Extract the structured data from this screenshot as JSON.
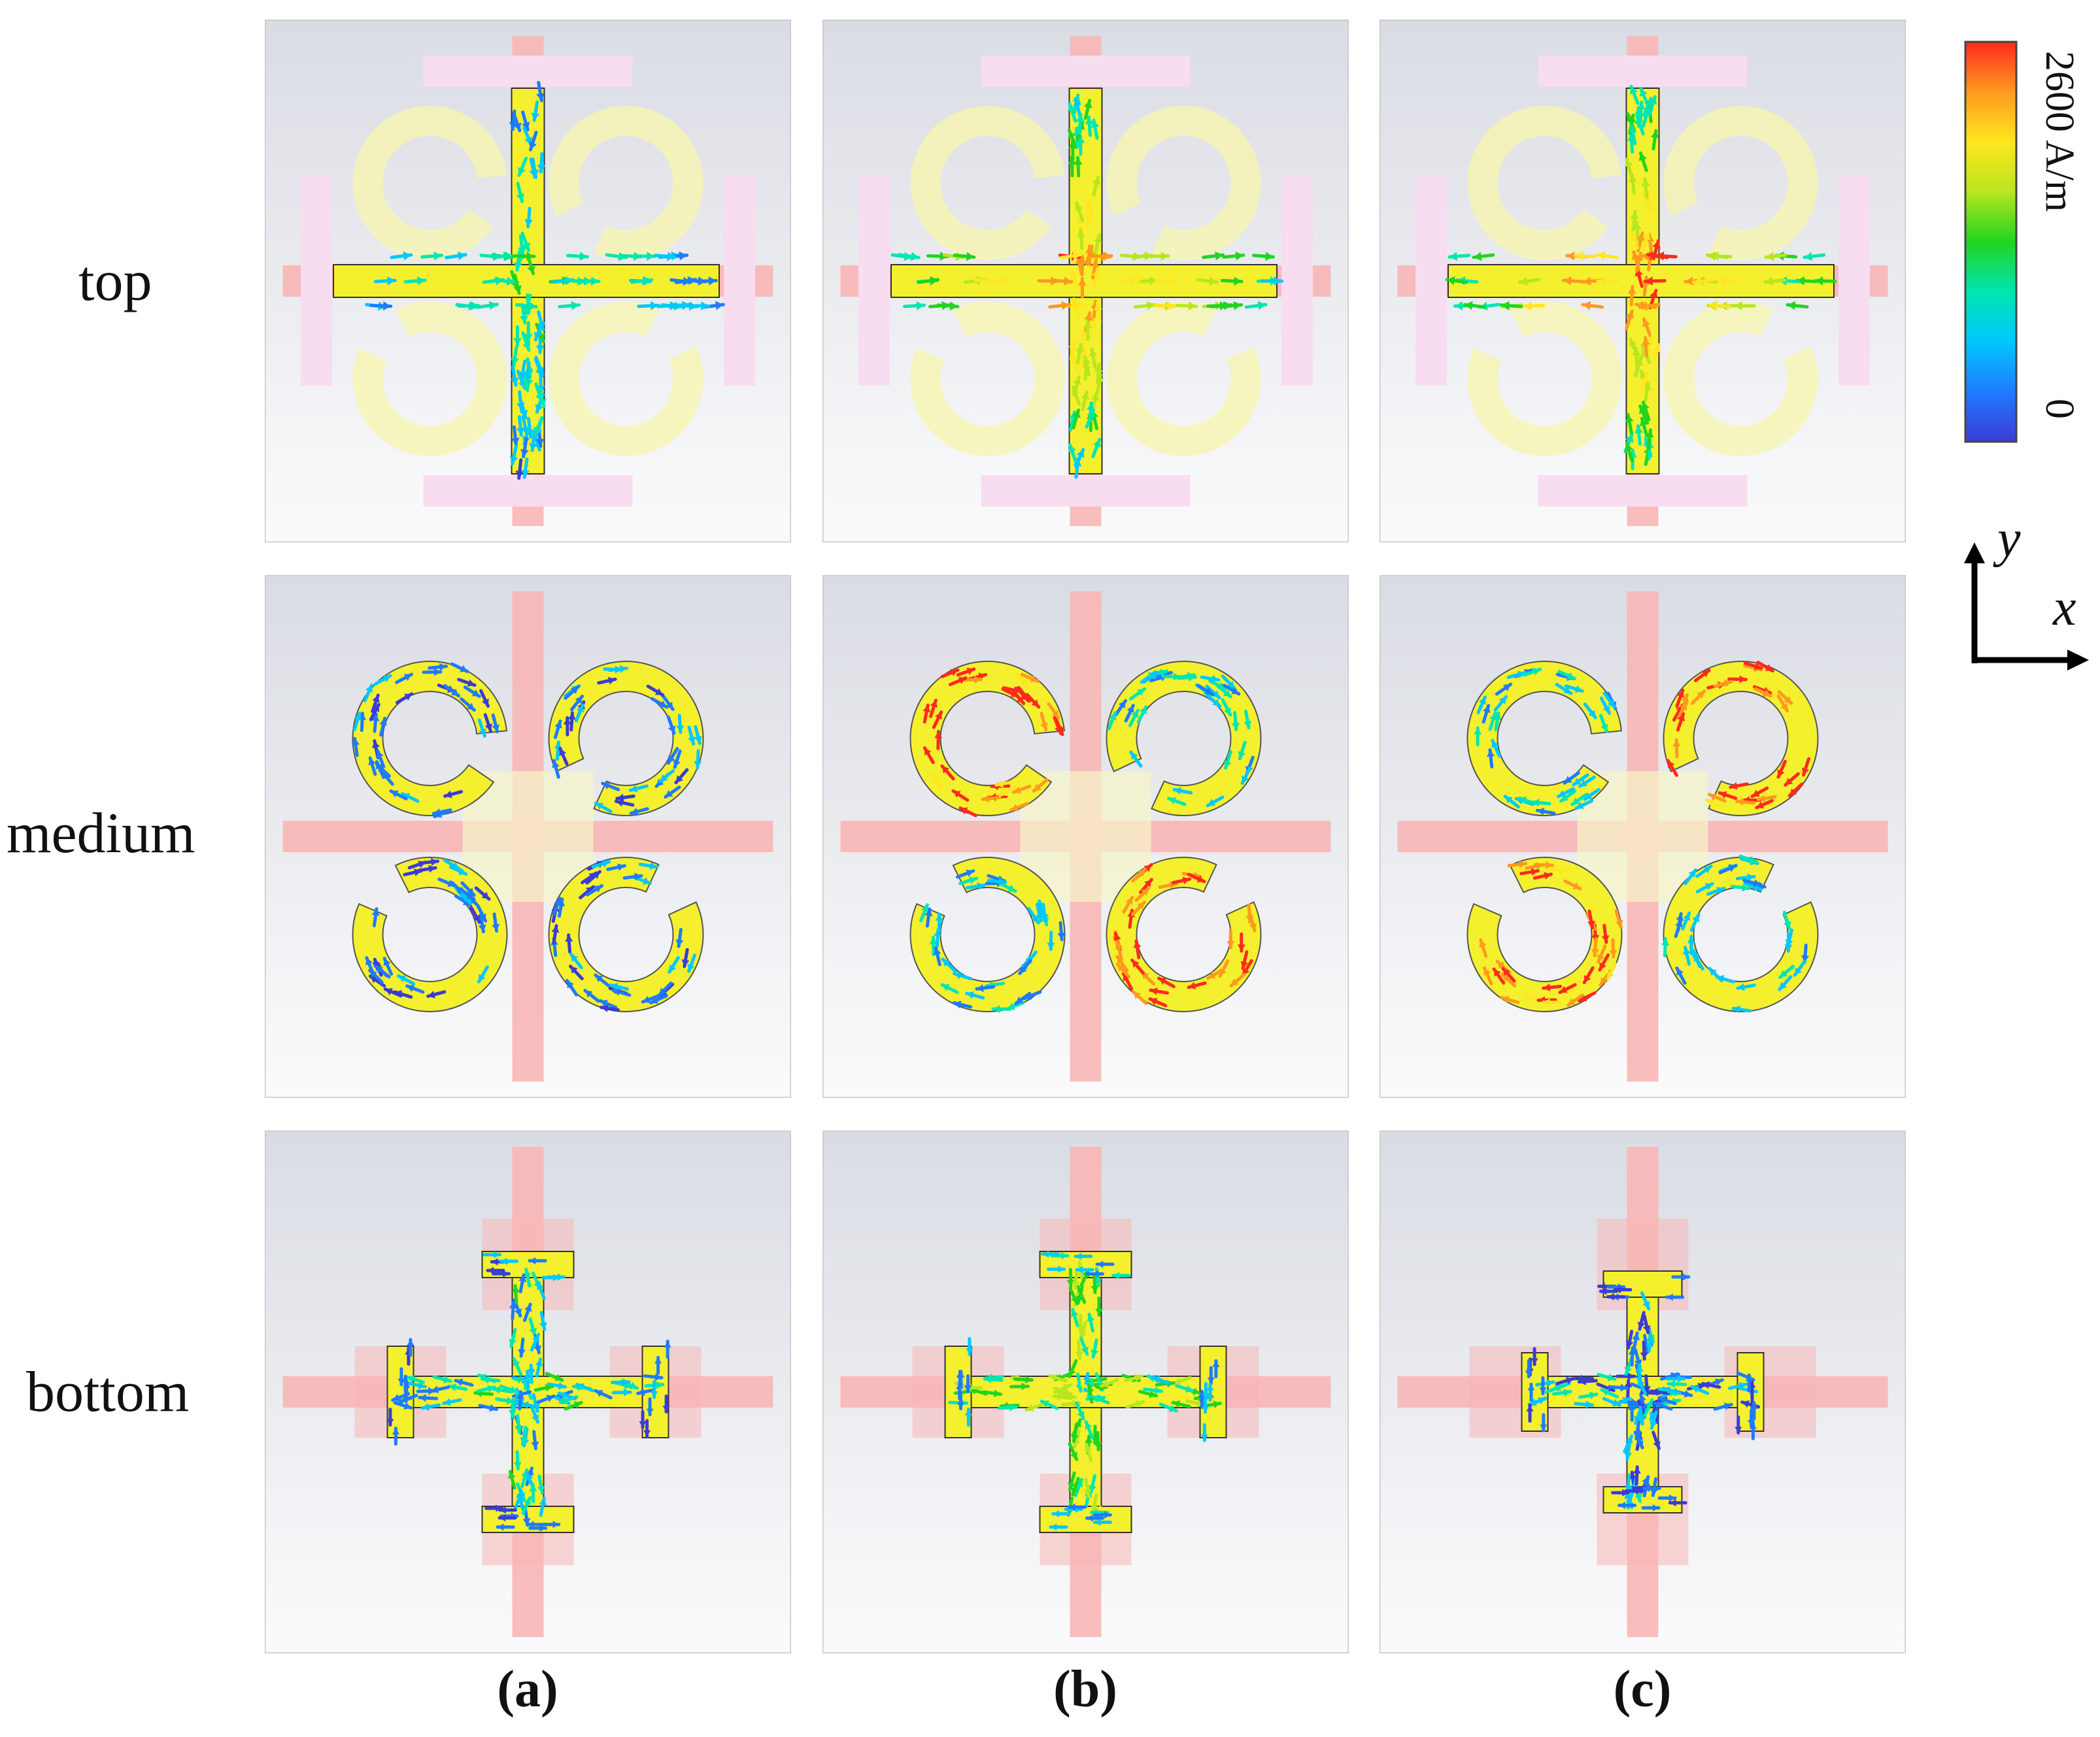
{
  "rows": [
    {
      "key": "top",
      "label": "top"
    },
    {
      "key": "medium",
      "label": "medium"
    },
    {
      "key": "bottom",
      "label": "bottom"
    }
  ],
  "columns": [
    {
      "key": "a",
      "label": "(a)"
    },
    {
      "key": "b",
      "label": "(b)"
    },
    {
      "key": "c",
      "label": "(c)"
    }
  ],
  "colorbar": {
    "max_label": "2600 A/m",
    "min_label": "0",
    "colors": [
      "#3b3bd6",
      "#1e7bff",
      "#00c8ff",
      "#00e6b0",
      "#21d421",
      "#b8e61e",
      "#ffe61e",
      "#ff9a1e",
      "#ff2a1e"
    ]
  },
  "axes": {
    "x_label": "x",
    "y_label": "y"
  },
  "colors": {
    "conductor": "#f4f02e",
    "conductor_faded": "#f7f5b0",
    "shadow_red": "#f8b6b6",
    "shadow_pink": "#f8dcf0",
    "panel_bg": "#eef0f4"
  },
  "current_intensity": {
    "top": {
      "a": 0.45,
      "b": 0.85,
      "c": 0.9
    },
    "medium": {
      "a": 0.35,
      "b": 0.7,
      "c": 0.7
    },
    "bottom": {
      "a": 0.3,
      "b": 0.5,
      "c": 0.2
    }
  }
}
